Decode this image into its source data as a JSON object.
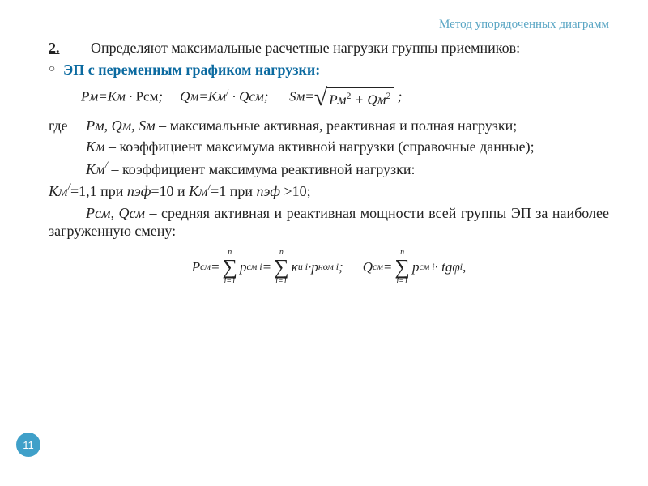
{
  "header": {
    "title": "Метод упорядоченных диаграмм",
    "color": "#5aa6c4"
  },
  "item": {
    "number": "2.",
    "text": "Определяют максимальные расчетные нагрузки группы приемников:"
  },
  "sub": {
    "bullet": "○",
    "text": "ЭП с переменным графиком нагрузки:",
    "color": "#0b6aa0"
  },
  "formula_line": {
    "f1_pre": "Рм=Км · ",
    "f1_r": "Рсм",
    "f1_post": "; ",
    "f2": "Qм=Км",
    "f2_sup": "/",
    "f2_tail": " · Qсм; ",
    "f3_pre": "Sм=",
    "sqrt_body_a": "Рм",
    "sqrt_exp": "2",
    "sqrt_plus": " + ",
    "sqrt_body_b": "Qм",
    "sqrt_tail": " ;"
  },
  "p1": {
    "pre": "где ",
    "vars": "Рм, Qм, Sм",
    "tail": " – максимальные активная, реактивная и полная нагрузки;"
  },
  "p2": {
    "vars": "Км",
    "tail": " – коэффициент максимума активной нагрузки (справочные данные);"
  },
  "p3": {
    "vars": "Км",
    "sup": "/",
    "tail": " – коэффициент максимума реактивной нагрузки:"
  },
  "p4": {
    "a": "Км",
    "a_sup": "/",
    "a_eq": "=1,1 при ",
    "n1": "nэф",
    "mid": "=10 и ",
    "b": "Км",
    "b_sup": "/",
    "b_eq": "=1 при ",
    "n2": "nэф",
    "tail": " >10;"
  },
  "p5": {
    "vars": "Рсм, Qсм",
    "tail": " – средняя активная и реактивная мощности всей группы ЭП за наиболее загруженную смену:"
  },
  "sumformula": {
    "P": {
      "lhs": "P",
      "lhs_sub": "см",
      "eq": " = ",
      "t1": "p",
      "t1_sub": "см i",
      "m1": " = ",
      "t2a": "κ",
      "t2a_sub": "и i",
      "dot": " · ",
      "t2b": "p",
      "t2b_sub": "ном i",
      "end": " ;"
    },
    "Q": {
      "lhs": "Q",
      "lhs_sub": "см",
      "eq": " = ",
      "t1": "p",
      "t1_sub": "см i",
      "dot": " · tgφ",
      "phi_sub": "i",
      "end": " ,"
    },
    "sigma": {
      "top": "n",
      "sym": "∑",
      "bot": "i=1"
    }
  },
  "page": {
    "number": "11",
    "bg": "#3fa0c9"
  }
}
